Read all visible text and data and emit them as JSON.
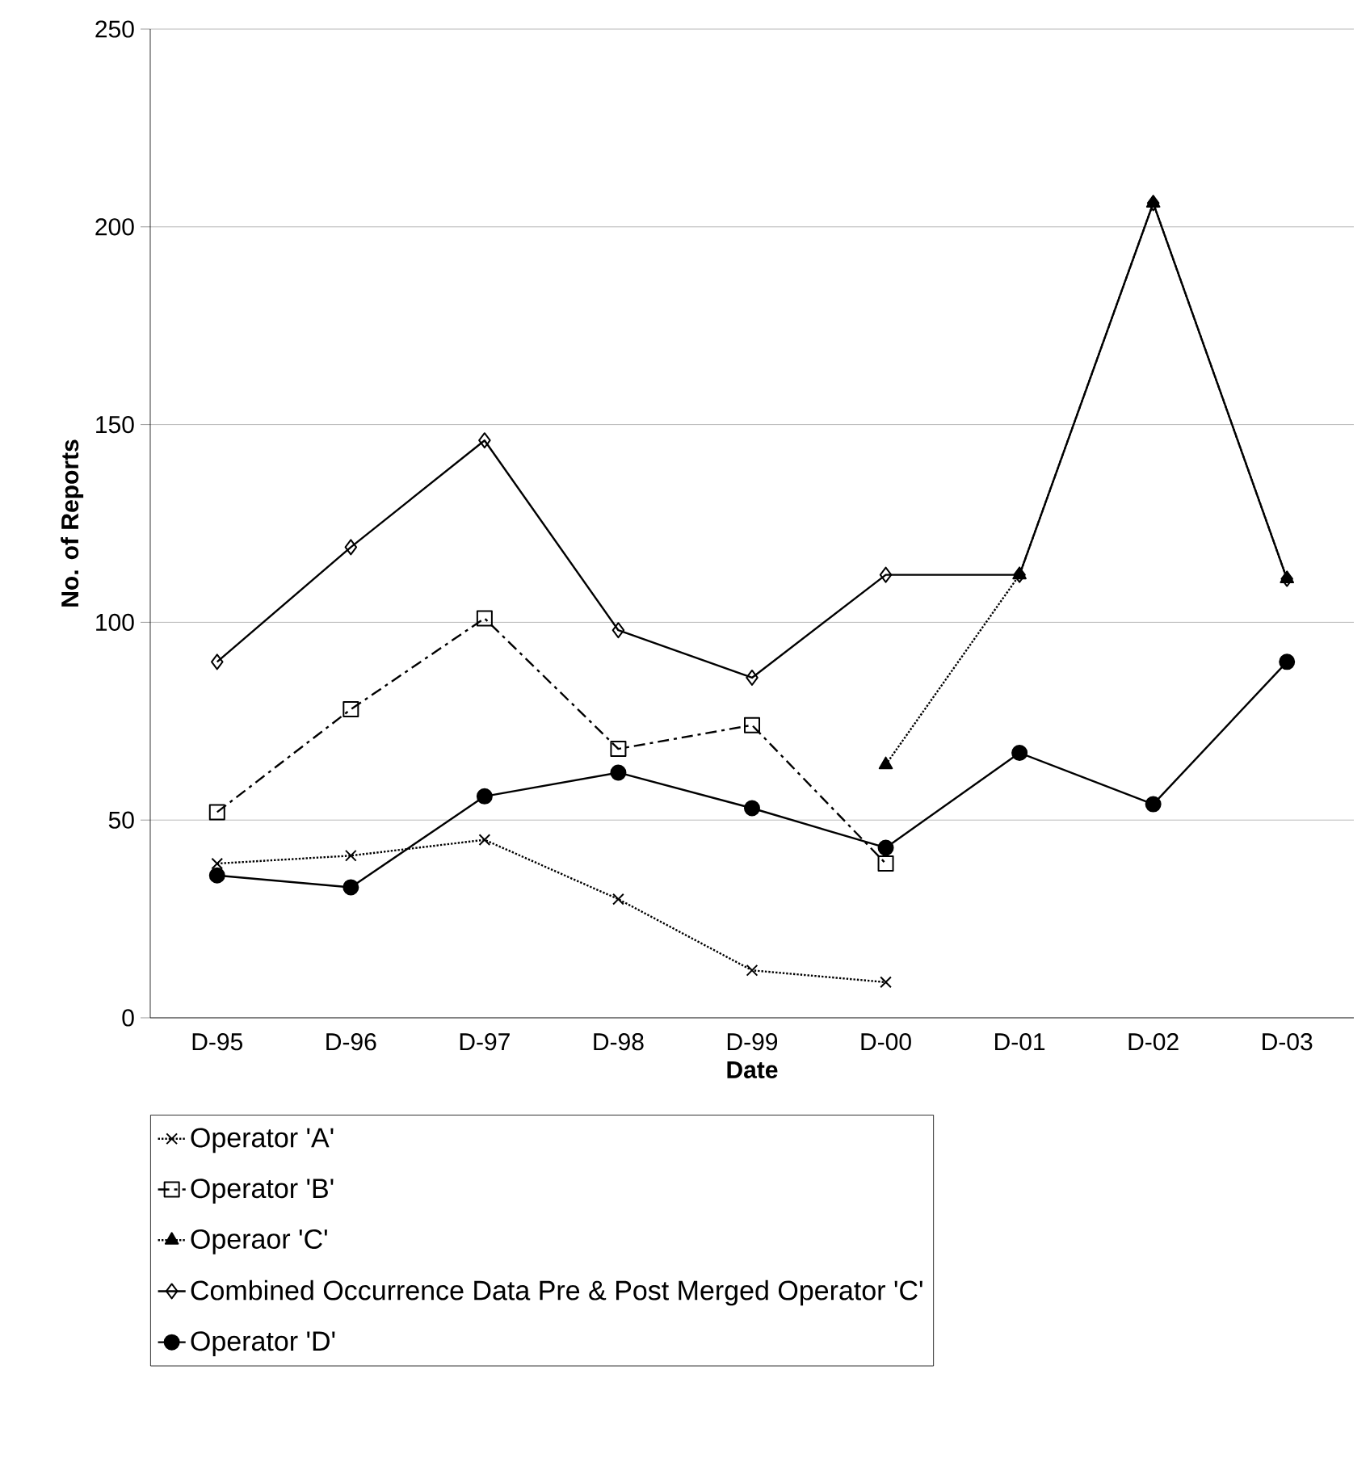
{
  "chart_data": {
    "type": "line",
    "xlabel": "Date",
    "ylabel": "No. of Reports",
    "categories": [
      "D-95",
      "D-96",
      "D-97",
      "D-98",
      "D-99",
      "D-00",
      "D-01",
      "D-02",
      "D-03"
    ],
    "series": [
      {
        "name": "Operator 'A'",
        "color": "#000000",
        "marker": "cross",
        "line_style": "dotted",
        "values": [
          39,
          41,
          45,
          30,
          12,
          9,
          null,
          null,
          null
        ]
      },
      {
        "name": "Operator 'B'",
        "color": "#000000",
        "marker": "square",
        "line_style": "dashed",
        "values": [
          52,
          78,
          101,
          68,
          74,
          39,
          null,
          null,
          null
        ]
      },
      {
        "name": "Operaor 'C'",
        "color": "#000000",
        "marker": "triangle",
        "line_style": "dotted",
        "values": [
          null,
          null,
          null,
          null,
          null,
          64,
          112,
          206,
          111
        ]
      },
      {
        "name": "Combined Occurrence Data Pre & Post Merged Operator 'C'",
        "color": "#000000",
        "marker": "diamond",
        "line_style": "solid",
        "values": [
          90,
          119,
          146,
          98,
          86,
          112,
          112,
          206,
          111
        ]
      },
      {
        "name": "Operator 'D'",
        "color": "#000000",
        "marker": "circle",
        "line_style": "solid",
        "values": [
          36,
          33,
          56,
          62,
          53,
          43,
          67,
          54,
          90
        ]
      }
    ],
    "ylim": [
      0,
      250
    ],
    "yticks": [
      0,
      50,
      100,
      150,
      200,
      250
    ],
    "grid": "y",
    "legend": "bottom"
  }
}
